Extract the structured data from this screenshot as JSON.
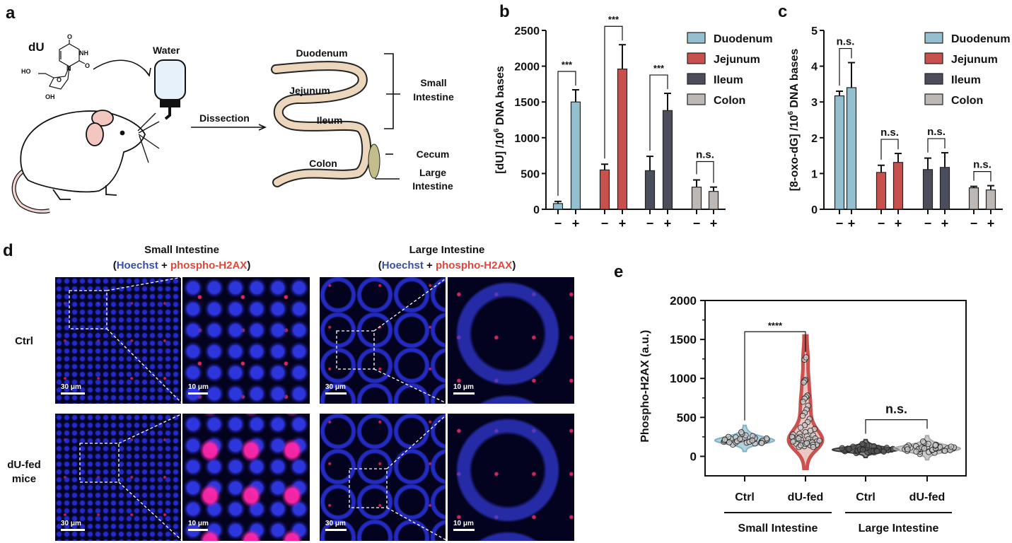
{
  "panel_labels": {
    "a": "a",
    "b": "b",
    "c": "c",
    "d": "d",
    "e": "e"
  },
  "panel_a": {
    "compound": "dU",
    "atoms": {
      "o_top": "O",
      "nh": "NH",
      "n": "N",
      "o_right": "O",
      "ho": "HO",
      "o_ring": "O",
      "oh": "OH"
    },
    "water": "Water",
    "dissection": "Dissection",
    "segments": {
      "duodenum": "Duodenum",
      "jejunum": "Jejunum",
      "ileum": "Ileum",
      "colon": "Colon"
    },
    "regions": {
      "small_1": "Small",
      "small_2": "Intestine",
      "cecum": "Cecum",
      "large_1": "Large",
      "large_2": "Intestine"
    },
    "colors": {
      "intestine": "#ecd6bc",
      "cecum": "#c2bd8a",
      "bottle": "#e6f1fa"
    }
  },
  "panel_d": {
    "columns": [
      {
        "title": "Small Intestine",
        "stain": [
          "(",
          "Hoechst",
          " + ",
          "phospho-H2AX",
          ")"
        ]
      },
      {
        "title": "Large Intestine",
        "stain": [
          "(",
          "Hoechst",
          " + ",
          "phospho-H2AX",
          ")"
        ]
      }
    ],
    "rows": [
      {
        "label": [
          "Ctrl"
        ]
      },
      {
        "label": [
          "dU-fed",
          "mice"
        ]
      }
    ],
    "scale_overview": "30 μm",
    "scale_zoom": "10 μm",
    "colors": {
      "hoechst": "#3a4fa0",
      "phospho": "#e0473c"
    }
  },
  "chart_data": [
    {
      "id": "b",
      "type": "bar",
      "ylabel": [
        "[dU] /10",
        "6",
        " DNA bases"
      ],
      "ylim": [
        0,
        2500
      ],
      "yticks": [
        0,
        500,
        1000,
        1500,
        2000,
        2500
      ],
      "x_tick_labels": [
        "−",
        "+"
      ],
      "legend": {
        "placement": "top-right",
        "entries": [
          "Duodenum",
          "Jejunum",
          "Ileum",
          "Colon"
        ]
      },
      "colors": [
        "#93bfcf",
        "#c8514d",
        "#4a4d5a",
        "#bdb8b3"
      ],
      "groups": [
        {
          "name": "Duodenum",
          "values": [
            80,
            1500
          ],
          "errors": [
            30,
            170
          ],
          "significance": "***"
        },
        {
          "name": "Jejunum",
          "values": [
            550,
            1960
          ],
          "errors": [
            80,
            340
          ],
          "significance": "***"
        },
        {
          "name": "Ileum",
          "values": [
            540,
            1380
          ],
          "errors": [
            200,
            240
          ],
          "significance": "***"
        },
        {
          "name": "Colon",
          "values": [
            310,
            250
          ],
          "errors": [
            100,
            60
          ],
          "significance": "n.s."
        }
      ]
    },
    {
      "id": "c",
      "type": "bar",
      "ylabel": [
        "[8-oxo-dG] /10",
        "6",
        " DNA bases"
      ],
      "ylim": [
        0,
        5
      ],
      "yticks": [
        0,
        1,
        2,
        3,
        4,
        5
      ],
      "x_tick_labels": [
        "−",
        "+"
      ],
      "legend": {
        "placement": "top-right",
        "entries": [
          "Duodenum",
          "Jejunum",
          "Ileum",
          "Colon"
        ]
      },
      "colors": [
        "#93bfcf",
        "#c8514d",
        "#4a4d5a",
        "#bdb8b3"
      ],
      "groups": [
        {
          "name": "Duodenum",
          "values": [
            3.17,
            3.4
          ],
          "errors": [
            0.13,
            0.7
          ],
          "significance": "n.s."
        },
        {
          "name": "Jejunum",
          "values": [
            1.03,
            1.31
          ],
          "errors": [
            0.2,
            0.25
          ],
          "significance": "n.s."
        },
        {
          "name": "Ileum",
          "values": [
            1.11,
            1.17
          ],
          "errors": [
            0.32,
            0.41
          ],
          "significance": "n.s."
        },
        {
          "name": "Colon",
          "values": [
            0.6,
            0.54
          ],
          "errors": [
            0.04,
            0.12
          ],
          "significance": "n.s."
        }
      ]
    },
    {
      "id": "e",
      "type": "scatter",
      "subtype": "violin-beeswarm",
      "ylabel": "Phospho-H2AX (a.u.)",
      "ylim": [
        -250,
        2000
      ],
      "yticks": [
        0,
        500,
        1000,
        1500,
        2000
      ],
      "categories": [
        "Ctrl",
        "dU-fed",
        "Ctrl",
        "dU-fed"
      ],
      "category_groups": [
        "Small Intestine",
        "Large Intestine"
      ],
      "colors": [
        "#7fb3c4",
        "#c9524e",
        "#3a3a3a",
        "#a8a8a8"
      ],
      "comparisons": [
        {
          "between": [
            0,
            1
          ],
          "label": "****"
        },
        {
          "between": [
            2,
            3
          ],
          "label": "n.s."
        }
      ],
      "series": [
        {
          "values": [
            150,
            165,
            175,
            180,
            185,
            190,
            190,
            195,
            200,
            200,
            205,
            210,
            210,
            215,
            220,
            220,
            225,
            230,
            235,
            240,
            245,
            250,
            260,
            270,
            290,
            310,
            200,
            185,
            195,
            215,
            175,
            205,
            225,
            180,
            170
          ]
        },
        {
          "values": [
            1240,
            1270,
            980,
            970,
            950,
            780,
            760,
            740,
            700,
            650,
            600,
            560,
            520,
            480,
            440,
            400,
            370,
            350,
            330,
            310,
            290,
            280,
            270,
            260,
            250,
            240,
            230,
            220,
            210,
            200,
            190,
            180,
            170,
            160,
            150,
            140,
            130,
            120,
            200,
            180,
            160,
            230,
            250,
            150,
            170,
            140,
            190,
            120
          ]
        },
        {
          "values": [
            40,
            50,
            55,
            60,
            65,
            70,
            70,
            75,
            75,
            80,
            80,
            85,
            85,
            85,
            90,
            90,
            90,
            95,
            95,
            100,
            100,
            105,
            110,
            115,
            120,
            125,
            130,
            140,
            150,
            160,
            80,
            70,
            90,
            100,
            60,
            75,
            85,
            95,
            110,
            65
          ]
        },
        {
          "values": [
            30,
            45,
            55,
            60,
            70,
            75,
            80,
            85,
            90,
            90,
            95,
            95,
            100,
            100,
            105,
            110,
            110,
            115,
            120,
            125,
            130,
            140,
            150,
            160,
            175,
            190,
            100,
            85,
            95,
            120,
            70,
            105,
            115,
            90,
            80,
            135,
            100,
            60,
            125,
            145
          ]
        }
      ]
    }
  ]
}
